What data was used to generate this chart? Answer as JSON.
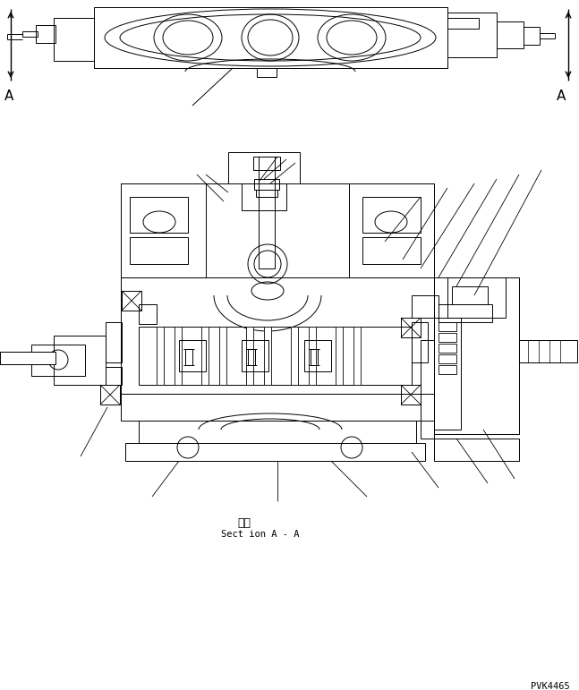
{
  "background_color": "#ffffff",
  "line_color": "#000000",
  "figure_id": "PVK4465",
  "section_label_japanese": "断面",
  "section_label_english": "Sect ion A - A",
  "label_A_left": "A",
  "label_A_right": "A"
}
